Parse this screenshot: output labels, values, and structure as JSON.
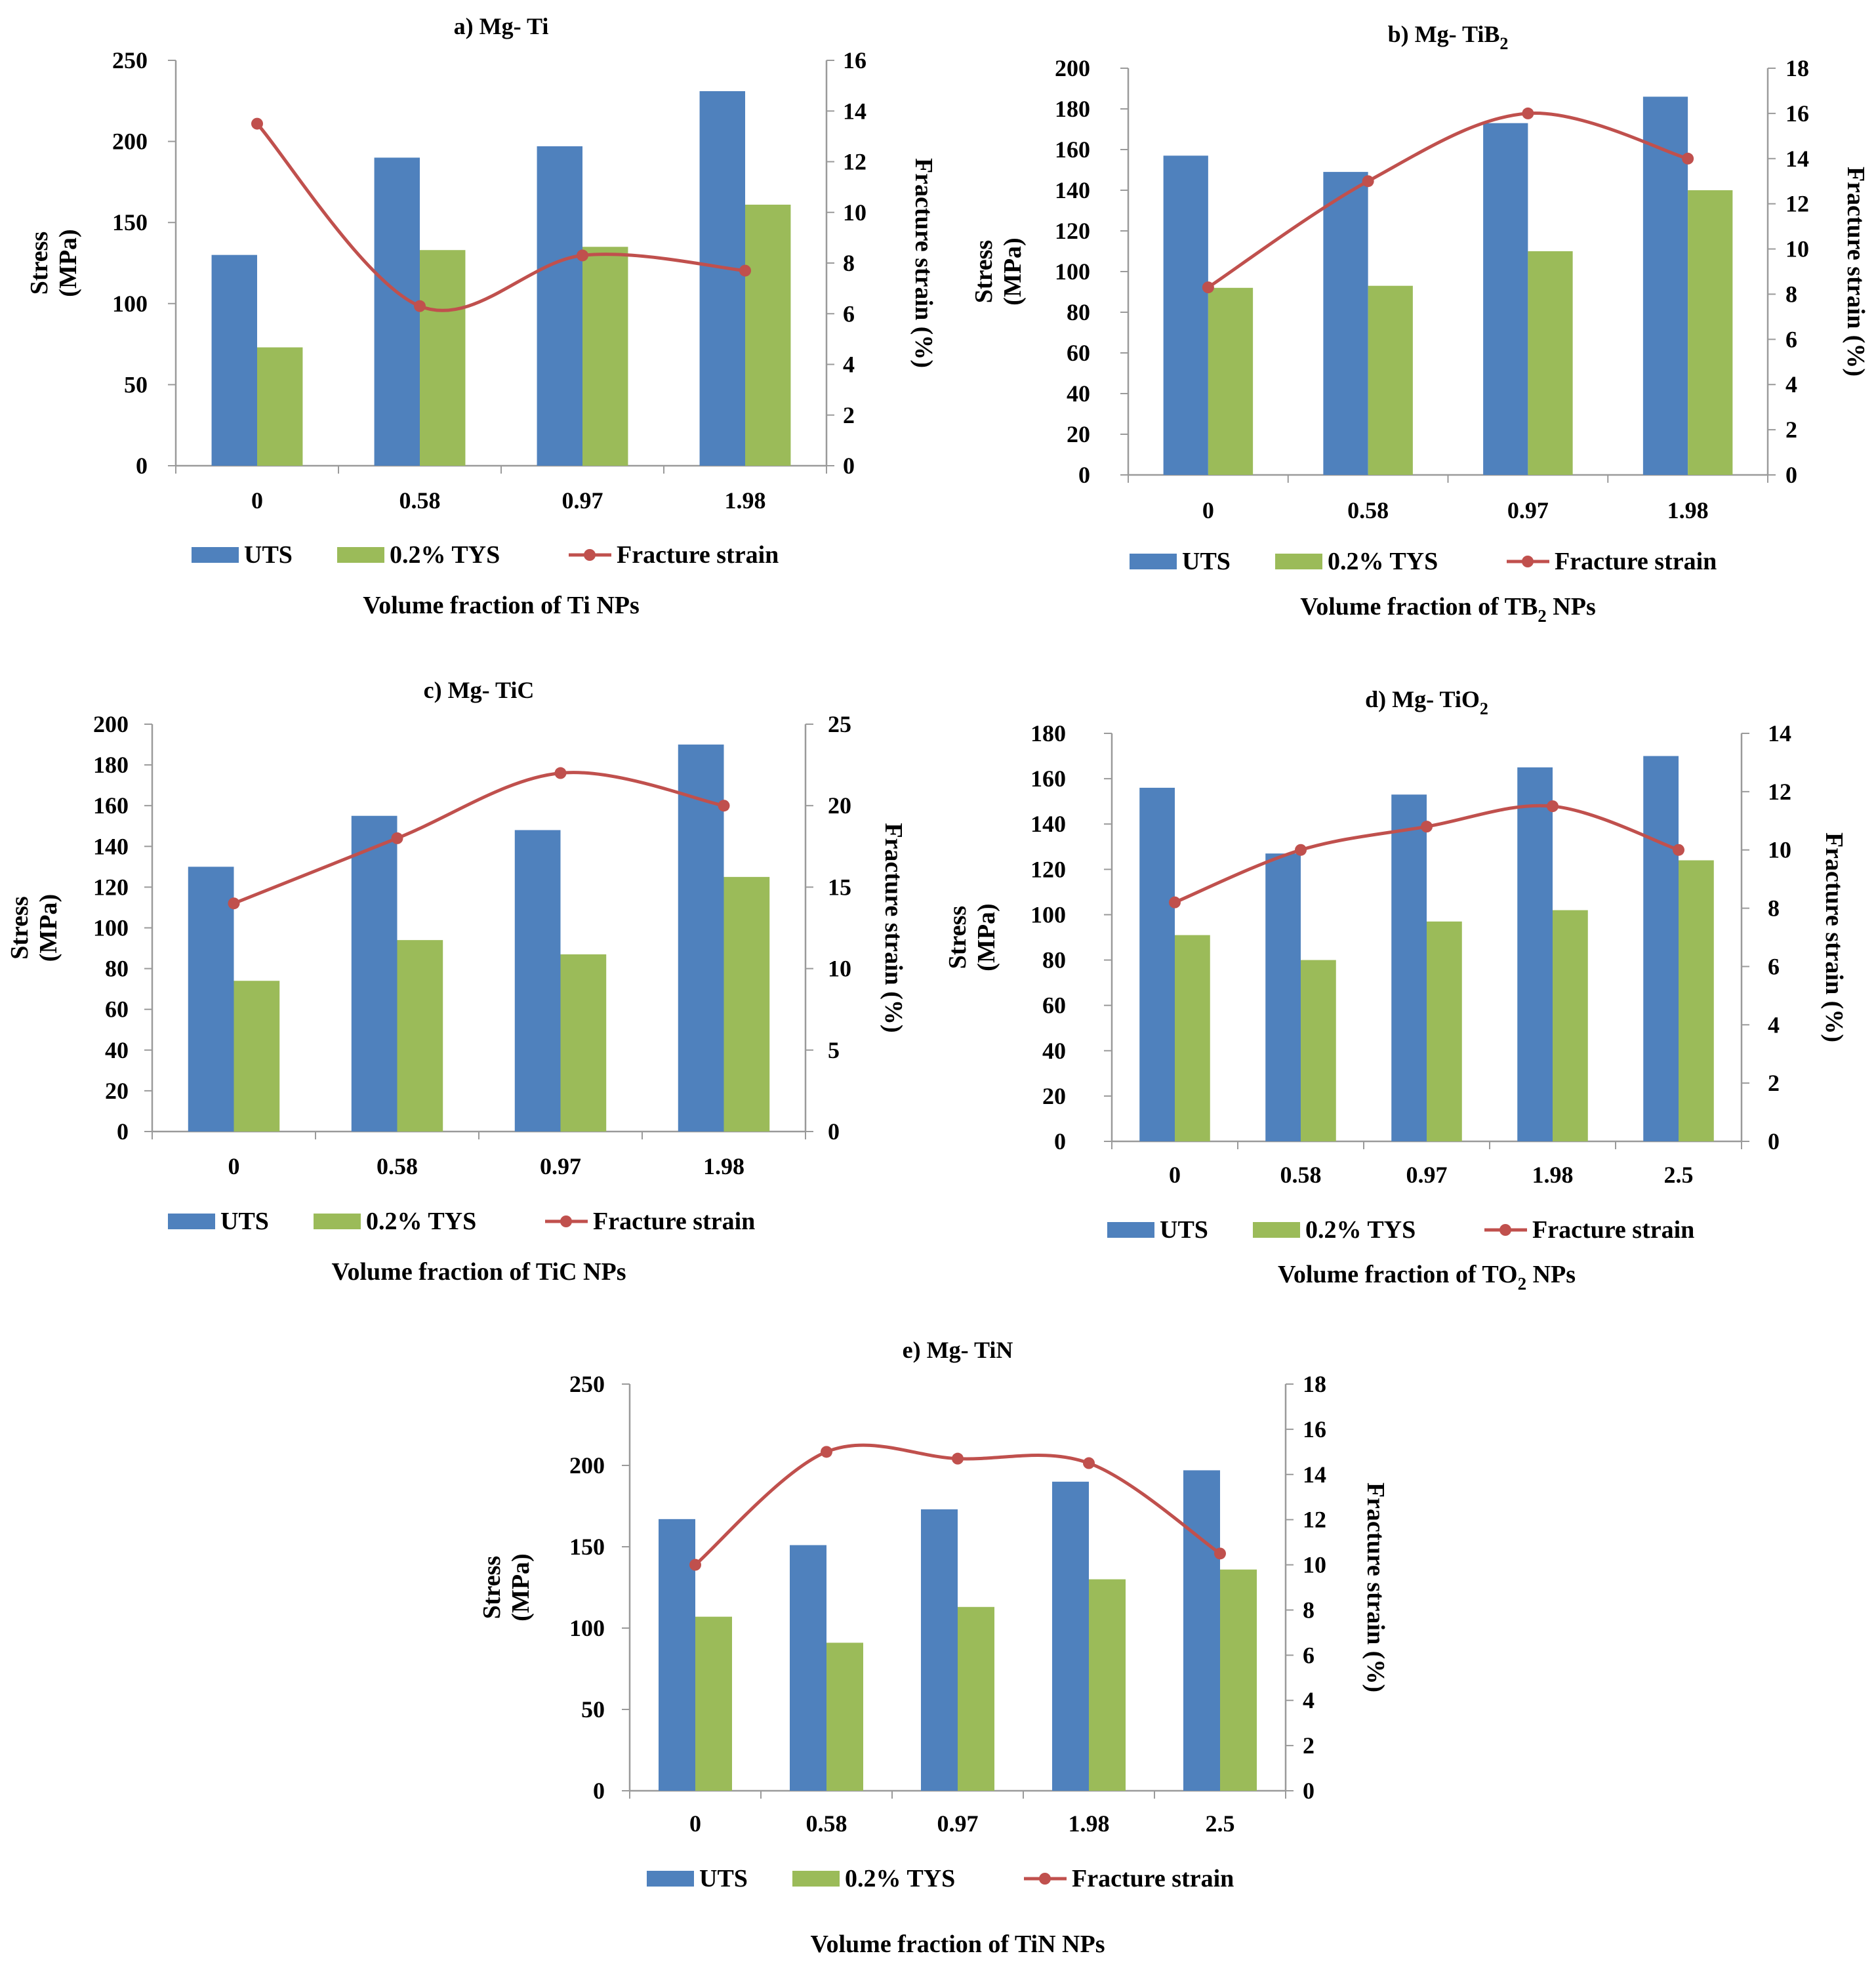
{
  "colors": {
    "uts": "#4F81BD",
    "tys": "#9BBB59",
    "strain": "#C0504D",
    "axis": "#9a9a9a"
  },
  "legend": {
    "uts": "UTS",
    "tys": "0.2% TYS",
    "strain": "Fracture strain"
  },
  "axis_titles": {
    "y_left_line1": "Stress",
    "y_left_line2": "(MPa)",
    "y_right": "Fracture strain (%)"
  },
  "chart_data": [
    {
      "type": "bar",
      "title": "a) Mg- Ti",
      "xlabel": "Volume fraction of Ti NPs",
      "categories": [
        "0",
        "0.58",
        "0.97",
        "1.98"
      ],
      "yticks": [
        "0",
        "50",
        "100",
        "150",
        "200",
        "250"
      ],
      "ylim": [
        0,
        250
      ],
      "y2ticks": [
        "0",
        "2",
        "4",
        "6",
        "8",
        "10",
        "12",
        "14",
        "16"
      ],
      "y2lim": [
        0,
        16
      ],
      "series": [
        {
          "name": "UTS",
          "values": [
            130,
            190,
            197,
            231
          ]
        },
        {
          "name": "0.2% TYS",
          "values": [
            73,
            133,
            135,
            161
          ]
        },
        {
          "name": "Fracture strain",
          "axis": "right",
          "values": [
            13.5,
            6.3,
            8.3,
            7.7
          ]
        }
      ]
    },
    {
      "type": "bar",
      "title": "b) Mg- TiB",
      "title_sub": "2",
      "xlabel": "Volume fraction of TB",
      "xlabel_sub": "2",
      "xlabel_tail": " NPs",
      "categories": [
        "0",
        "0.58",
        "0.97",
        "1.98"
      ],
      "yticks": [
        "0",
        "20",
        "40",
        "60",
        "80",
        "100",
        "120",
        "140",
        "160",
        "180",
        "200"
      ],
      "ylim": [
        0,
        200
      ],
      "y2ticks": [
        "0",
        "2",
        "4",
        "6",
        "8",
        "10",
        "12",
        "14",
        "16",
        "18"
      ],
      "y2lim": [
        0,
        18
      ],
      "series": [
        {
          "name": "UTS",
          "values": [
            157,
            149,
            173,
            186
          ]
        },
        {
          "name": "0.2% TYS",
          "values": [
            92,
            93,
            110,
            140
          ]
        },
        {
          "name": "Fracture strain",
          "axis": "right",
          "values": [
            8.3,
            13,
            16,
            14
          ]
        }
      ]
    },
    {
      "type": "bar",
      "title": "c) Mg- TiC",
      "xlabel": "Volume fraction of TiC NPs",
      "categories": [
        "0",
        "0.58",
        "0.97",
        "1.98"
      ],
      "yticks": [
        "0",
        "20",
        "40",
        "60",
        "80",
        "100",
        "120",
        "140",
        "160",
        "180",
        "200"
      ],
      "ylim": [
        0,
        200
      ],
      "y2ticks": [
        "0",
        "5",
        "10",
        "15",
        "20",
        "25"
      ],
      "y2lim": [
        0,
        25
      ],
      "series": [
        {
          "name": "UTS",
          "values": [
            130,
            155,
            148,
            190
          ]
        },
        {
          "name": "0.2% TYS",
          "values": [
            74,
            94,
            87,
            125
          ]
        },
        {
          "name": "Fracture strain",
          "axis": "right",
          "values": [
            14,
            18,
            22,
            20
          ]
        }
      ]
    },
    {
      "type": "bar",
      "title": "d) Mg- TiO",
      "title_sub": "2",
      "xlabel": "Volume fraction of TO",
      "xlabel_sub": "2",
      "xlabel_tail": " NPs",
      "categories": [
        "0",
        "0.58",
        "0.97",
        "1.98",
        "2.5"
      ],
      "yticks": [
        "0",
        "20",
        "40",
        "60",
        "80",
        "100",
        "120",
        "140",
        "160",
        "180"
      ],
      "ylim": [
        0,
        180
      ],
      "y2ticks": [
        "0",
        "2",
        "4",
        "6",
        "8",
        "10",
        "12",
        "14"
      ],
      "y2lim": [
        0,
        14
      ],
      "series": [
        {
          "name": "UTS",
          "values": [
            156,
            127,
            153,
            165,
            170
          ]
        },
        {
          "name": "0.2% TYS",
          "values": [
            91,
            80,
            97,
            102,
            124
          ]
        },
        {
          "name": "Fracture strain",
          "axis": "right",
          "values": [
            8.2,
            10,
            10.8,
            11.5,
            10
          ]
        }
      ]
    },
    {
      "type": "bar",
      "title": "e) Mg- TiN",
      "xlabel": "Volume fraction of TiN NPs",
      "categories": [
        "0",
        "0.58",
        "0.97",
        "1.98",
        "2.5"
      ],
      "yticks": [
        "0",
        "50",
        "100",
        "150",
        "200",
        "250"
      ],
      "ylim": [
        0,
        250
      ],
      "y2ticks": [
        "0",
        "2",
        "4",
        "6",
        "8",
        "10",
        "12",
        "14",
        "16",
        "18"
      ],
      "y2lim": [
        0,
        18
      ],
      "series": [
        {
          "name": "UTS",
          "values": [
            167,
            151,
            173,
            190,
            197
          ]
        },
        {
          "name": "0.2% TYS",
          "values": [
            107,
            91,
            113,
            130,
            136
          ]
        },
        {
          "name": "Fracture strain",
          "axis": "right",
          "values": [
            10,
            15,
            14.7,
            14.5,
            10.5
          ]
        }
      ]
    }
  ]
}
